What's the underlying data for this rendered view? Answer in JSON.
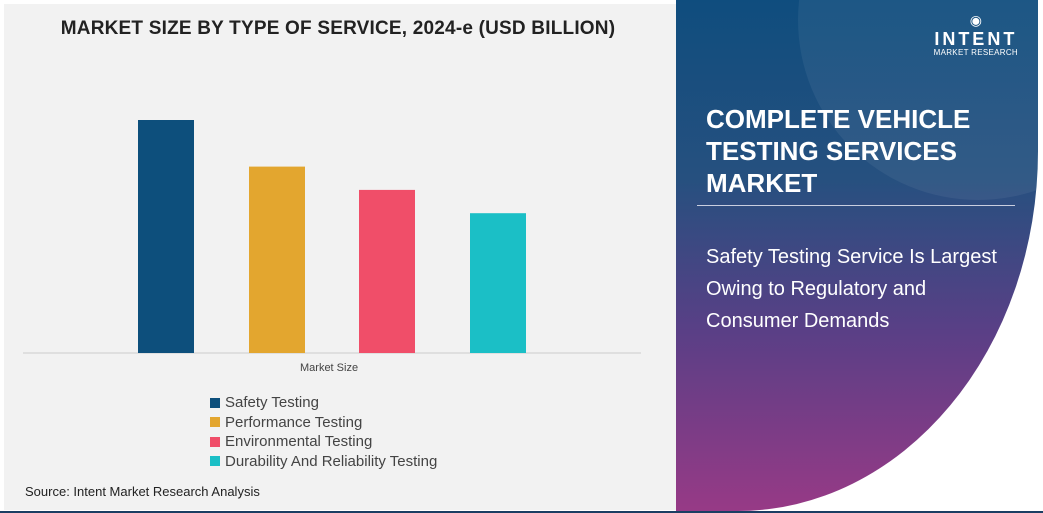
{
  "chart_data": {
    "type": "bar",
    "title": "MARKET SIZE BY TYPE OF SERVICE, 2024-e (USD BILLION)",
    "categories": [
      "Market Size"
    ],
    "series": [
      {
        "name": "Safety Testing",
        "values": [
          100
        ],
        "color": "#0d4f7c"
      },
      {
        "name": "Performance Testing",
        "values": [
          80
        ],
        "color": "#e3a62f"
      },
      {
        "name": "Environmental Testing",
        "values": [
          70
        ],
        "color": "#f04e69"
      },
      {
        "name": "Durability And Reliability Testing",
        "values": [
          60
        ],
        "color": "#1bbfc6"
      }
    ],
    "value_note": "relative bar heights, no axis values printed",
    "legend_position": "bottom",
    "grid": false
  },
  "source": "Source: Intent Market Research Analysis",
  "logo": {
    "brand": "INTENT",
    "tagline": "MARKET RESEARCH"
  },
  "panel": {
    "title": "COMPLETE VEHICLE TESTING SERVICES MARKET",
    "subtitle": "Safety Testing Service Is Largest Owing to Regulatory and Consumer Demands"
  }
}
